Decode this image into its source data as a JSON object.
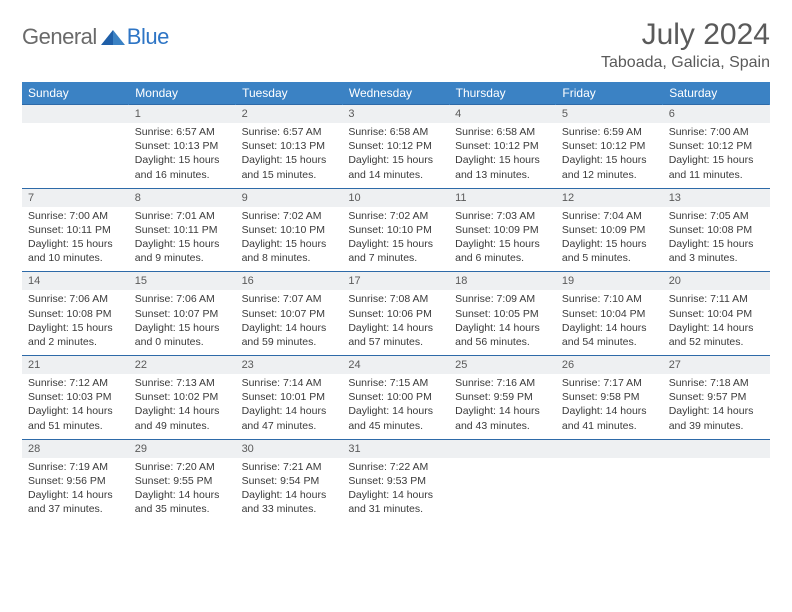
{
  "brand": {
    "text1": "General",
    "text2": "Blue"
  },
  "title": "July 2024",
  "location": "Taboada, Galicia, Spain",
  "colors": {
    "header_bg": "#3b82c4",
    "header_text": "#ffffff",
    "daynum_bg": "#eef0f2",
    "rule": "#2e6aa8",
    "title_color": "#5a5a5a",
    "brand_gray": "#6a6a6a",
    "brand_blue": "#2e75c5"
  },
  "weekdays": [
    "Sunday",
    "Monday",
    "Tuesday",
    "Wednesday",
    "Thursday",
    "Friday",
    "Saturday"
  ],
  "weeks": [
    {
      "nums": [
        "",
        "1",
        "2",
        "3",
        "4",
        "5",
        "6"
      ],
      "cells": [
        {
          "sunrise": "",
          "sunset": "",
          "daylight1": "",
          "daylight2": ""
        },
        {
          "sunrise": "Sunrise: 6:57 AM",
          "sunset": "Sunset: 10:13 PM",
          "daylight1": "Daylight: 15 hours",
          "daylight2": "and 16 minutes."
        },
        {
          "sunrise": "Sunrise: 6:57 AM",
          "sunset": "Sunset: 10:13 PM",
          "daylight1": "Daylight: 15 hours",
          "daylight2": "and 15 minutes."
        },
        {
          "sunrise": "Sunrise: 6:58 AM",
          "sunset": "Sunset: 10:12 PM",
          "daylight1": "Daylight: 15 hours",
          "daylight2": "and 14 minutes."
        },
        {
          "sunrise": "Sunrise: 6:58 AM",
          "sunset": "Sunset: 10:12 PM",
          "daylight1": "Daylight: 15 hours",
          "daylight2": "and 13 minutes."
        },
        {
          "sunrise": "Sunrise: 6:59 AM",
          "sunset": "Sunset: 10:12 PM",
          "daylight1": "Daylight: 15 hours",
          "daylight2": "and 12 minutes."
        },
        {
          "sunrise": "Sunrise: 7:00 AM",
          "sunset": "Sunset: 10:12 PM",
          "daylight1": "Daylight: 15 hours",
          "daylight2": "and 11 minutes."
        }
      ]
    },
    {
      "nums": [
        "7",
        "8",
        "9",
        "10",
        "11",
        "12",
        "13"
      ],
      "cells": [
        {
          "sunrise": "Sunrise: 7:00 AM",
          "sunset": "Sunset: 10:11 PM",
          "daylight1": "Daylight: 15 hours",
          "daylight2": "and 10 minutes."
        },
        {
          "sunrise": "Sunrise: 7:01 AM",
          "sunset": "Sunset: 10:11 PM",
          "daylight1": "Daylight: 15 hours",
          "daylight2": "and 9 minutes."
        },
        {
          "sunrise": "Sunrise: 7:02 AM",
          "sunset": "Sunset: 10:10 PM",
          "daylight1": "Daylight: 15 hours",
          "daylight2": "and 8 minutes."
        },
        {
          "sunrise": "Sunrise: 7:02 AM",
          "sunset": "Sunset: 10:10 PM",
          "daylight1": "Daylight: 15 hours",
          "daylight2": "and 7 minutes."
        },
        {
          "sunrise": "Sunrise: 7:03 AM",
          "sunset": "Sunset: 10:09 PM",
          "daylight1": "Daylight: 15 hours",
          "daylight2": "and 6 minutes."
        },
        {
          "sunrise": "Sunrise: 7:04 AM",
          "sunset": "Sunset: 10:09 PM",
          "daylight1": "Daylight: 15 hours",
          "daylight2": "and 5 minutes."
        },
        {
          "sunrise": "Sunrise: 7:05 AM",
          "sunset": "Sunset: 10:08 PM",
          "daylight1": "Daylight: 15 hours",
          "daylight2": "and 3 minutes."
        }
      ]
    },
    {
      "nums": [
        "14",
        "15",
        "16",
        "17",
        "18",
        "19",
        "20"
      ],
      "cells": [
        {
          "sunrise": "Sunrise: 7:06 AM",
          "sunset": "Sunset: 10:08 PM",
          "daylight1": "Daylight: 15 hours",
          "daylight2": "and 2 minutes."
        },
        {
          "sunrise": "Sunrise: 7:06 AM",
          "sunset": "Sunset: 10:07 PM",
          "daylight1": "Daylight: 15 hours",
          "daylight2": "and 0 minutes."
        },
        {
          "sunrise": "Sunrise: 7:07 AM",
          "sunset": "Sunset: 10:07 PM",
          "daylight1": "Daylight: 14 hours",
          "daylight2": "and 59 minutes."
        },
        {
          "sunrise": "Sunrise: 7:08 AM",
          "sunset": "Sunset: 10:06 PM",
          "daylight1": "Daylight: 14 hours",
          "daylight2": "and 57 minutes."
        },
        {
          "sunrise": "Sunrise: 7:09 AM",
          "sunset": "Sunset: 10:05 PM",
          "daylight1": "Daylight: 14 hours",
          "daylight2": "and 56 minutes."
        },
        {
          "sunrise": "Sunrise: 7:10 AM",
          "sunset": "Sunset: 10:04 PM",
          "daylight1": "Daylight: 14 hours",
          "daylight2": "and 54 minutes."
        },
        {
          "sunrise": "Sunrise: 7:11 AM",
          "sunset": "Sunset: 10:04 PM",
          "daylight1": "Daylight: 14 hours",
          "daylight2": "and 52 minutes."
        }
      ]
    },
    {
      "nums": [
        "21",
        "22",
        "23",
        "24",
        "25",
        "26",
        "27"
      ],
      "cells": [
        {
          "sunrise": "Sunrise: 7:12 AM",
          "sunset": "Sunset: 10:03 PM",
          "daylight1": "Daylight: 14 hours",
          "daylight2": "and 51 minutes."
        },
        {
          "sunrise": "Sunrise: 7:13 AM",
          "sunset": "Sunset: 10:02 PM",
          "daylight1": "Daylight: 14 hours",
          "daylight2": "and 49 minutes."
        },
        {
          "sunrise": "Sunrise: 7:14 AM",
          "sunset": "Sunset: 10:01 PM",
          "daylight1": "Daylight: 14 hours",
          "daylight2": "and 47 minutes."
        },
        {
          "sunrise": "Sunrise: 7:15 AM",
          "sunset": "Sunset: 10:00 PM",
          "daylight1": "Daylight: 14 hours",
          "daylight2": "and 45 minutes."
        },
        {
          "sunrise": "Sunrise: 7:16 AM",
          "sunset": "Sunset: 9:59 PM",
          "daylight1": "Daylight: 14 hours",
          "daylight2": "and 43 minutes."
        },
        {
          "sunrise": "Sunrise: 7:17 AM",
          "sunset": "Sunset: 9:58 PM",
          "daylight1": "Daylight: 14 hours",
          "daylight2": "and 41 minutes."
        },
        {
          "sunrise": "Sunrise: 7:18 AM",
          "sunset": "Sunset: 9:57 PM",
          "daylight1": "Daylight: 14 hours",
          "daylight2": "and 39 minutes."
        }
      ]
    },
    {
      "nums": [
        "28",
        "29",
        "30",
        "31",
        "",
        "",
        ""
      ],
      "cells": [
        {
          "sunrise": "Sunrise: 7:19 AM",
          "sunset": "Sunset: 9:56 PM",
          "daylight1": "Daylight: 14 hours",
          "daylight2": "and 37 minutes."
        },
        {
          "sunrise": "Sunrise: 7:20 AM",
          "sunset": "Sunset: 9:55 PM",
          "daylight1": "Daylight: 14 hours",
          "daylight2": "and 35 minutes."
        },
        {
          "sunrise": "Sunrise: 7:21 AM",
          "sunset": "Sunset: 9:54 PM",
          "daylight1": "Daylight: 14 hours",
          "daylight2": "and 33 minutes."
        },
        {
          "sunrise": "Sunrise: 7:22 AM",
          "sunset": "Sunset: 9:53 PM",
          "daylight1": "Daylight: 14 hours",
          "daylight2": "and 31 minutes."
        },
        {
          "sunrise": "",
          "sunset": "",
          "daylight1": "",
          "daylight2": ""
        },
        {
          "sunrise": "",
          "sunset": "",
          "daylight1": "",
          "daylight2": ""
        },
        {
          "sunrise": "",
          "sunset": "",
          "daylight1": "",
          "daylight2": ""
        }
      ]
    }
  ]
}
